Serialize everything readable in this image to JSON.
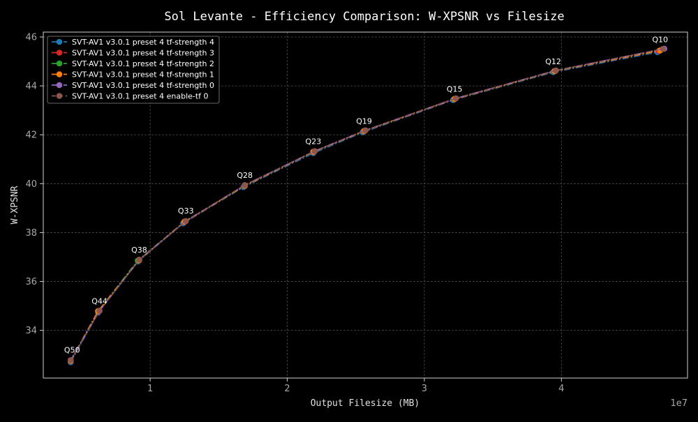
{
  "chart_data": {
    "type": "line",
    "title": "Sol Levante - Efficiency Comparison: W-XPSNR vs Filesize",
    "xlabel": "Output Filesize (MB)",
    "ylabel": "W-XPSNR",
    "x_offset_label": "1e7",
    "xlim": [
      2.2,
      49.2
    ],
    "ylim": [
      32.05,
      46.2
    ],
    "x_ticks": [
      {
        "value": 10,
        "label": "1"
      },
      {
        "value": 20,
        "label": "2"
      },
      {
        "value": 30,
        "label": "3"
      },
      {
        "value": 40,
        "label": "4"
      }
    ],
    "y_ticks": [
      {
        "value": 34,
        "label": "34"
      },
      {
        "value": 36,
        "label": "36"
      },
      {
        "value": 38,
        "label": "38"
      },
      {
        "value": 40,
        "label": "40"
      },
      {
        "value": 42,
        "label": "42"
      },
      {
        "value": 44,
        "label": "44"
      },
      {
        "value": 46,
        "label": "46"
      }
    ],
    "grid": true,
    "legend_position": "top-left",
    "annotations": [
      {
        "label": "Q50",
        "x": 4.3,
        "y": 32.8
      },
      {
        "label": "Q44",
        "x": 6.3,
        "y": 34.8
      },
      {
        "label": "Q38",
        "x": 9.2,
        "y": 36.9
      },
      {
        "label": "Q33",
        "x": 12.6,
        "y": 38.5
      },
      {
        "label": "Q28",
        "x": 16.9,
        "y": 39.95
      },
      {
        "label": "Q23",
        "x": 21.9,
        "y": 41.33
      },
      {
        "label": "Q19",
        "x": 25.6,
        "y": 42.17
      },
      {
        "label": "Q15",
        "x": 32.2,
        "y": 43.48
      },
      {
        "label": "Q12",
        "x": 39.4,
        "y": 44.6
      },
      {
        "label": "Q10",
        "x": 47.2,
        "y": 45.5
      }
    ],
    "series": [
      {
        "name": "SVT-AV1 v3.0.1 preset 4 tf-strength 4",
        "color": "#1f77b4",
        "dash": "dashdot",
        "x": [
          4.2,
          6.2,
          9.1,
          12.4,
          16.8,
          21.9,
          25.5,
          32.1,
          39.4,
          47.0
        ],
        "y": [
          32.7,
          34.73,
          36.82,
          38.38,
          39.86,
          41.25,
          42.1,
          43.42,
          44.56,
          45.38
        ]
      },
      {
        "name": "SVT-AV1 v3.0.1 preset 4 tf-strength 3",
        "color": "#d62728",
        "dash": "dashdot",
        "x": [
          4.2,
          6.2,
          9.1,
          12.5,
          16.9,
          21.9,
          25.6,
          32.2,
          39.5,
          47.1
        ],
        "y": [
          32.74,
          34.77,
          36.85,
          38.43,
          39.9,
          41.29,
          42.14,
          43.45,
          44.59,
          45.43
        ]
      },
      {
        "name": "SVT-AV1 v3.0.1 preset 4 tf-strength 2",
        "color": "#2ca02c",
        "dash": "dashdot",
        "x": [
          4.2,
          6.2,
          9.1,
          12.5,
          16.9,
          21.9,
          25.6,
          32.2,
          39.5,
          47.2
        ],
        "y": [
          32.75,
          34.78,
          36.86,
          38.44,
          39.91,
          41.3,
          42.15,
          43.46,
          44.6,
          45.45
        ]
      },
      {
        "name": "SVT-AV1 v3.0.1 preset 4 tf-strength 1",
        "color": "#ff7f0e",
        "dash": "dashdot",
        "x": [
          4.2,
          6.2,
          9.2,
          12.5,
          16.9,
          21.9,
          25.6,
          32.2,
          39.5,
          47.2
        ],
        "y": [
          32.76,
          34.79,
          36.87,
          38.45,
          39.92,
          41.31,
          42.16,
          43.47,
          44.61,
          45.45
        ]
      },
      {
        "name": "SVT-AV1 v3.0.1 preset 4 tf-strength 0",
        "color": "#9467bd",
        "dash": "dashdot",
        "x": [
          4.2,
          6.3,
          9.2,
          12.6,
          16.9,
          22.0,
          25.7,
          32.3,
          39.6,
          47.5
        ],
        "y": [
          32.78,
          34.8,
          36.89,
          38.47,
          39.94,
          41.33,
          42.18,
          43.49,
          44.63,
          45.52
        ]
      },
      {
        "name": "SVT-AV1 v3.0.1 preset 4 enable-tf 0",
        "color": "#8c564b",
        "dash": "dashed",
        "x": [
          4.2,
          6.3,
          9.2,
          12.6,
          16.9,
          22.0,
          25.7,
          32.3,
          39.6,
          47.4
        ],
        "y": [
          32.78,
          34.8,
          36.89,
          38.47,
          39.94,
          41.33,
          42.18,
          43.49,
          44.63,
          45.51
        ]
      }
    ]
  }
}
